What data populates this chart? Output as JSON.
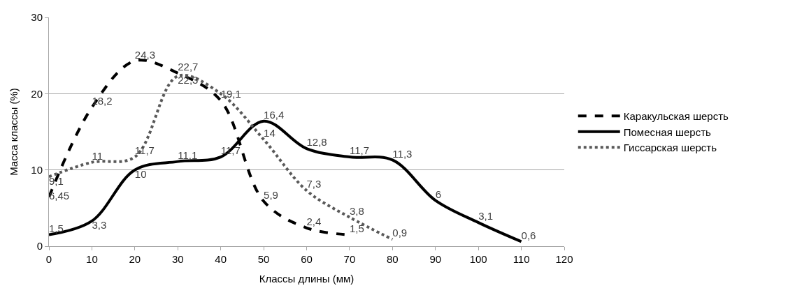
{
  "chart_data": {
    "type": "line",
    "xlabel": "Классы длины (мм)",
    "ylabel": "Масса классы (%)",
    "xlim": [
      0,
      120
    ],
    "xticks": [
      0,
      10,
      20,
      30,
      40,
      50,
      60,
      70,
      80,
      90,
      100,
      110,
      120
    ],
    "ylim": [
      0,
      30
    ],
    "yticks": [
      0,
      10,
      20,
      30
    ],
    "grid": "y",
    "legend": "right",
    "marker": "none",
    "series": [
      {
        "name": "Каракульская шерсть",
        "color": "#000000",
        "line_style": "dashed",
        "x": [
          0,
          10,
          20,
          30,
          40,
          50,
          60,
          70
        ],
        "values": [
          6.45,
          18.2,
          24.3,
          22.7,
          19.1,
          5.9,
          2.4,
          1.5
        ],
        "value_labels": [
          "6,45",
          "18,2",
          "24,3",
          "22,7",
          "19,1",
          "5,9",
          "2,4",
          "1,5"
        ]
      },
      {
        "name": "Помесная шерсть",
        "color": "#000000",
        "line_style": "solid",
        "x": [
          0,
          10,
          20,
          30,
          40,
          50,
          60,
          70,
          80,
          90,
          100,
          110
        ],
        "values": [
          1.5,
          3.3,
          10,
          11.1,
          11.7,
          16.4,
          12.8,
          11.7,
          11.3,
          6,
          3.1,
          0.6
        ],
        "value_labels": [
          "1,5",
          "3,3",
          "10",
          "11,1",
          "11,7",
          "16,4",
          "12,8",
          "11,7",
          "11,3",
          "6",
          "3,1",
          "0,6"
        ]
      },
      {
        "name": "Гиссарская шерсть",
        "color": "#595959",
        "line_style": "dotted",
        "x": [
          0,
          10,
          20,
          30,
          40,
          50,
          60,
          70,
          80
        ],
        "values": [
          9.1,
          11,
          11.7,
          22.3,
          20,
          14,
          7.3,
          3.8,
          0.9
        ],
        "value_labels": [
          "9,1",
          "11",
          "11,7",
          "22,3",
          null,
          "14",
          "7,3",
          "3,8",
          "0,9"
        ]
      }
    ]
  }
}
